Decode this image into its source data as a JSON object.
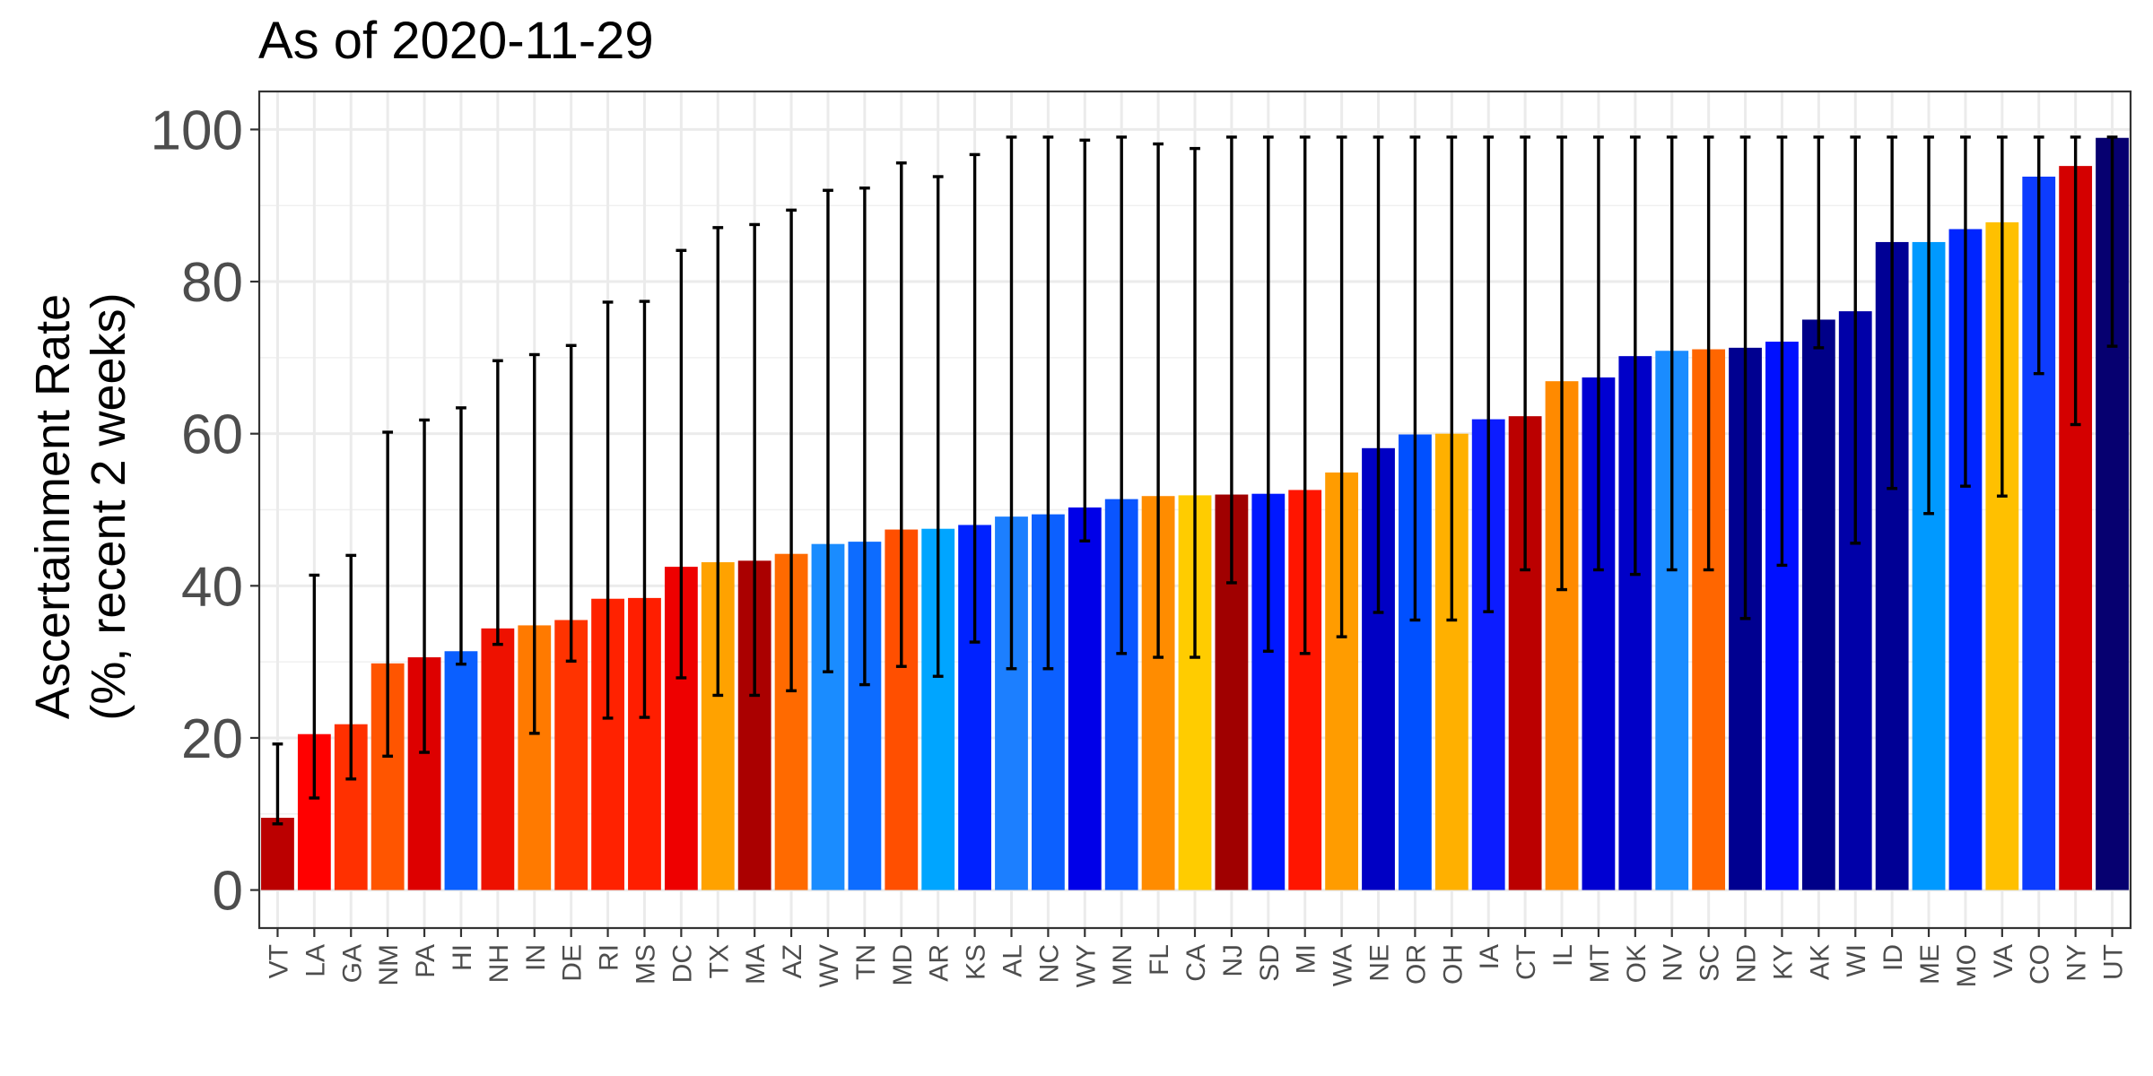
{
  "chart_data": {
    "type": "bar",
    "title": "As of 2020-11-29",
    "xlabel": "",
    "ylabel_line1": "Ascertainment Rate",
    "ylabel_line2": "(%, recent 2 weeks)",
    "ylim": [
      -5,
      105
    ],
    "yticks": [
      0,
      20,
      40,
      60,
      80,
      100
    ],
    "grid": true,
    "legend": "none",
    "categories": [
      "VT",
      "LA",
      "GA",
      "NM",
      "PA",
      "HI",
      "NH",
      "IN",
      "DE",
      "RI",
      "MS",
      "DC",
      "TX",
      "MA",
      "AZ",
      "WV",
      "TN",
      "MD",
      "AR",
      "KS",
      "AL",
      "NC",
      "WY",
      "MN",
      "FL",
      "CA",
      "NJ",
      "SD",
      "MI",
      "WA",
      "NE",
      "OR",
      "OH",
      "IA",
      "CT",
      "IL",
      "MT",
      "OK",
      "NV",
      "SC",
      "ND",
      "KY",
      "AK",
      "WI",
      "ID",
      "ME",
      "MO",
      "VA",
      "CO",
      "NY",
      "UT"
    ],
    "values": [
      9.5,
      20.5,
      21.8,
      29.8,
      30.6,
      31.4,
      34.4,
      34.8,
      35.5,
      38.3,
      38.4,
      42.5,
      43.1,
      43.3,
      44.2,
      45.5,
      45.8,
      47.4,
      47.5,
      48.0,
      49.1,
      49.4,
      50.3,
      51.4,
      51.8,
      51.9,
      52.0,
      52.1,
      52.6,
      54.9,
      58.1,
      59.9,
      60.0,
      61.9,
      62.3,
      66.9,
      67.4,
      70.2,
      70.9,
      71.1,
      71.3,
      72.1,
      75.0,
      76.1,
      85.2,
      85.2,
      86.9,
      87.8,
      93.8,
      95.2,
      98.9
    ],
    "lower": [
      8.7,
      12.1,
      14.6,
      17.6,
      18.1,
      29.7,
      32.3,
      20.6,
      30.1,
      22.6,
      22.7,
      27.9,
      25.6,
      25.6,
      26.2,
      28.7,
      27.0,
      29.4,
      28.1,
      32.6,
      29.1,
      29.1,
      45.9,
      31.1,
      30.6,
      30.6,
      40.4,
      31.4,
      31.1,
      33.3,
      36.5,
      35.5,
      35.5,
      36.6,
      42.1,
      39.5,
      42.1,
      41.5,
      42.1,
      42.1,
      35.7,
      42.7,
      71.3,
      45.6,
      52.8,
      49.5,
      53.1,
      51.8,
      67.9,
      61.2,
      71.5
    ],
    "upper": [
      19.2,
      41.4,
      44.0,
      60.2,
      61.8,
      63.4,
      69.6,
      70.4,
      71.6,
      77.3,
      77.4,
      84.1,
      87.1,
      87.5,
      89.4,
      92.0,
      92.3,
      95.6,
      93.8,
      96.7,
      99.0,
      99.0,
      98.6,
      99.0,
      98.1,
      97.5,
      99.0,
      99.0,
      99.0,
      99.0,
      99.0,
      99.0,
      99.0,
      99.0,
      99.0,
      99.0,
      99.0,
      99.0,
      99.0,
      99.0,
      99.0,
      99.0,
      99.0,
      99.0,
      99.0,
      99.0,
      99.0,
      99.0,
      99.0,
      99.0,
      99.0
    ],
    "colors": [
      "#bb0000",
      "#ff0000",
      "#ff3000",
      "#ff5500",
      "#dd0000",
      "#0a5fff",
      "#ee1100",
      "#ff7a00",
      "#ff3300",
      "#ff2200",
      "#ff1e00",
      "#ee0000",
      "#ffa200",
      "#aa0000",
      "#ff6a00",
      "#1a8cff",
      "#0d6cff",
      "#ff4f00",
      "#00a5ff",
      "#0022ff",
      "#1c7fff",
      "#0c60ff",
      "#0000e8",
      "#0a55ff",
      "#ff8c00",
      "#ffcc00",
      "#a00000",
      "#0018ff",
      "#ff1500",
      "#ff9c00",
      "#0000c4",
      "#0050ff",
      "#ffb000",
      "#0c1cff",
      "#bb0000",
      "#ff8a00",
      "#0000d2",
      "#0000c8",
      "#1a8cff",
      "#ff6600",
      "#000090",
      "#0010ff",
      "#000088",
      "#0000a8",
      "#000095",
      "#0099ff",
      "#0025ff",
      "#ffc000",
      "#0d3cff",
      "#d40000",
      "#060070"
    ]
  }
}
